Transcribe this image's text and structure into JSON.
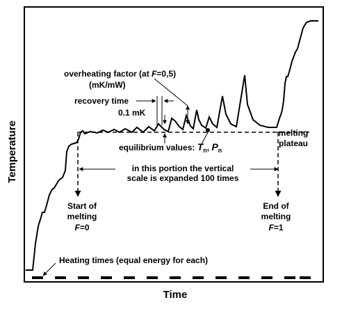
{
  "axes": {
    "x_title": "Time",
    "y_title": "Temperature"
  },
  "annotations": {
    "overheating_line1": "overheating factor (at",
    "overheating_F": "F",
    "overheating_eq": "=0,5)",
    "overheating_units": "(mK/mW)",
    "recovery_time": "recovery time",
    "delta_temp": "0.1 mK",
    "equilibrium_prefix": "equilibrium values:",
    "equilibrium_T": "T",
    "equilibrium_T_sub": "n",
    "equilibrium_sep": ",",
    "equilibrium_P": "P",
    "equilibrium_P_sub": "n",
    "plateau_line1": "melting",
    "plateau_line2": "plateau",
    "expanded_line1": "in this portion the vertical",
    "expanded_line2": "scale is expanded 100 times",
    "start_line1": "Start of",
    "start_line2": "melting",
    "start_F": "F",
    "start_eq": "=0",
    "end_line1": "End of",
    "end_line2": "melting",
    "end_F": "F",
    "end_eq": "=1",
    "heating_times": "Heating times (equal energy for each)"
  },
  "style": {
    "ink": "#000000",
    "background": "#ffffff"
  }
}
